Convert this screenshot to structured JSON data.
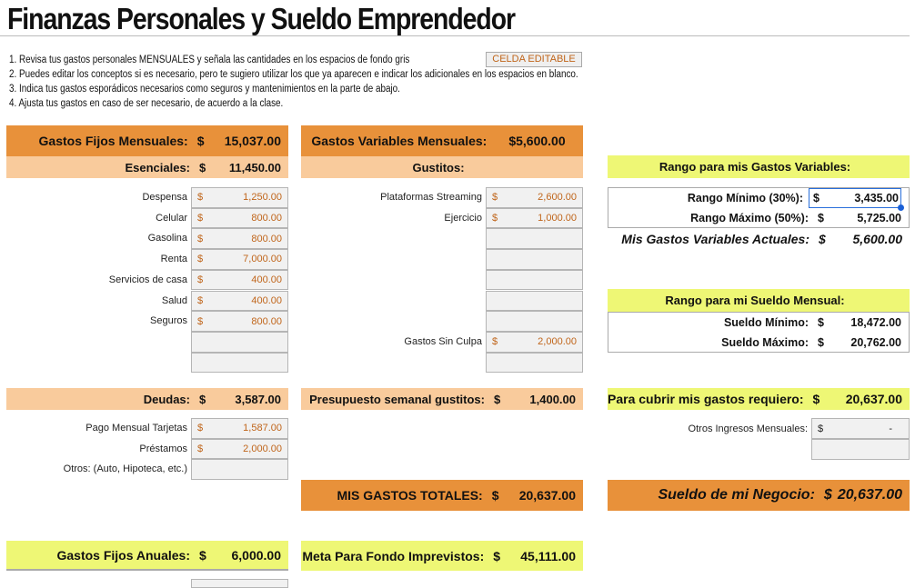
{
  "title": "Finanzas Personales y Sueldo Emprendedor",
  "instructions": [
    "1. Revisa tus gastos personales MENSUALES y señala las cantidades en los espacios de fondo gris",
    "2. Puedes editar los conceptos si es necesario, pero te sugiero utilizar los que ya aparecen e indicar los adicionales en los espacios en blanco.",
    "3. Indica tus gastos esporádicos necesarios como seguros y mantenimientos en la parte de abajo.",
    "4. Ajusta tus gastos en caso de ser necesario, de acuerdo a la clase."
  ],
  "legend_label": "CELDA EDITABLE",
  "colors": {
    "orange": "#E8913A",
    "peach": "#F9CB9C",
    "yellow": "#EEF775",
    "editable_text": "#c0651a"
  },
  "fijos": {
    "label": "Gastos Fijos Mensuales:",
    "cur": "$",
    "value": "15,037.00",
    "esenciales": {
      "label": "Esenciales:",
      "cur": "$",
      "value": "11,450.00"
    },
    "items": [
      {
        "label": "Despensa",
        "cur": "$",
        "value": "1,250.00"
      },
      {
        "label": "Celular",
        "cur": "$",
        "value": "800.00"
      },
      {
        "label": "Gasolina",
        "cur": "$",
        "value": "800.00"
      },
      {
        "label": "Renta",
        "cur": "$",
        "value": "7,000.00"
      },
      {
        "label": "Servicios de casa",
        "cur": "$",
        "value": "400.00"
      },
      {
        "label": "Salud",
        "cur": "$",
        "value": "400.00"
      },
      {
        "label": "Seguros",
        "cur": "$",
        "value": "800.00"
      },
      {
        "label": "",
        "cur": "",
        "value": ""
      },
      {
        "label": "",
        "cur": "",
        "value": ""
      }
    ],
    "deudas": {
      "label": "Deudas:",
      "cur": "$",
      "value": "3,587.00"
    },
    "deuda_items": [
      {
        "label": "Pago Mensual Tarjetas",
        "cur": "$",
        "value": "1,587.00"
      },
      {
        "label": "Préstamos",
        "cur": "$",
        "value": "2,000.00"
      },
      {
        "label": "Otros: (Auto, Hipoteca, etc.)",
        "cur": "",
        "value": ""
      }
    ],
    "anuales": {
      "label": "Gastos Fijos Anuales:",
      "cur": "$",
      "value": "6,000.00"
    }
  },
  "variables": {
    "label": "Gastos Variables Mensuales:",
    "value": "$5,600.00",
    "gustitos": {
      "label": "Gustitos:"
    },
    "items": [
      {
        "label": "Plataformas Streaming",
        "cur": "$",
        "value": "2,600.00"
      },
      {
        "label": "Ejercicio",
        "cur": "$",
        "value": "1,000.00"
      },
      {
        "label": "",
        "cur": "",
        "value": ""
      },
      {
        "label": "",
        "cur": "",
        "value": ""
      },
      {
        "label": "",
        "cur": "",
        "value": ""
      },
      {
        "label": "",
        "cur": "",
        "value": ""
      },
      {
        "label": "",
        "cur": "",
        "value": ""
      },
      {
        "label": "Gastos Sin Culpa",
        "cur": "$",
        "value": "2,000.00"
      },
      {
        "label": "",
        "cur": "",
        "value": ""
      }
    ],
    "semanal": {
      "label": "Presupuesto semanal gustitos:",
      "cur": "$",
      "value": "1,400.00"
    },
    "totales": {
      "label": "MIS GASTOS TOTALES:",
      "cur": "$",
      "value": "20,637.00"
    },
    "imprevistos": {
      "label": "Meta Para Fondo Imprevistos:",
      "cur": "$",
      "value": "45,111.00"
    }
  },
  "rango_var": {
    "title": "Rango para mis Gastos Variables:",
    "min": {
      "label": "Rango Mínimo (30%):",
      "cur": "$",
      "value": "3,435.00"
    },
    "max": {
      "label": "Rango Máximo (50%):",
      "cur": "$",
      "value": "5,725.00"
    },
    "actual": {
      "label": "Mis Gastos Variables Actuales:",
      "cur": "$",
      "value": "5,600.00"
    }
  },
  "rango_sueldo": {
    "title": "Rango para mi Sueldo Mensual:",
    "min": {
      "label": "Sueldo Mínimo:",
      "cur": "$",
      "value": "18,472.00"
    },
    "max": {
      "label": "Sueldo Máximo:",
      "cur": "$",
      "value": "20,762.00"
    }
  },
  "requiero": {
    "label": "Para cubrir mis gastos requiero:",
    "cur": "$",
    "value": "20,637.00"
  },
  "otros_ingresos": {
    "label": "Otros Ingresos Mensuales:",
    "cur": "$",
    "value": "-"
  },
  "sueldo_negocio": {
    "label": "Sueldo de mi Negocio:",
    "cur": "$",
    "value": "20,637.00"
  }
}
